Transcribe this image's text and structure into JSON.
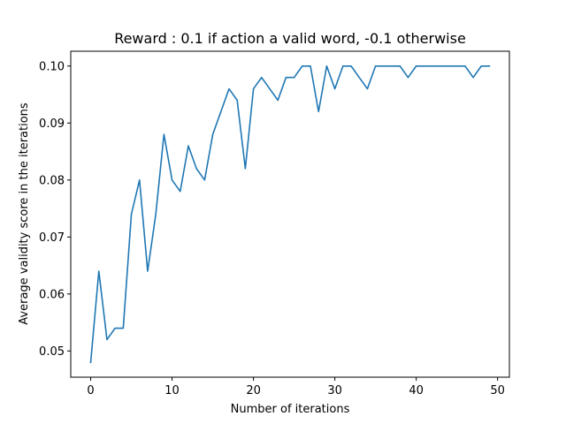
{
  "chart_data": {
    "type": "line",
    "title": "Reward : 0.1 if action a valid word, -0.1 otherwise",
    "xlabel": "Number of iterations",
    "ylabel": "Average validity score in the iterations",
    "xlim": [
      -2.45,
      51.45
    ],
    "ylim": [
      0.0454,
      0.1026
    ],
    "xticks": [
      0,
      10,
      20,
      30,
      40,
      50
    ],
    "yticks": [
      0.05,
      0.06,
      0.07,
      0.08,
      0.09,
      0.1
    ],
    "xtick_labels": [
      "0",
      "10",
      "20",
      "30",
      "40",
      "50"
    ],
    "ytick_labels": [
      "0.05",
      "0.06",
      "0.07",
      "0.08",
      "0.09",
      "0.10"
    ],
    "grid": false,
    "series": [
      {
        "color": "#1f77b4",
        "x": [
          0,
          1,
          2,
          3,
          4,
          5,
          6,
          7,
          8,
          9,
          10,
          11,
          12,
          13,
          14,
          15,
          16,
          17,
          18,
          19,
          20,
          21,
          22,
          23,
          24,
          25,
          26,
          27,
          28,
          29,
          30,
          31,
          32,
          33,
          34,
          35,
          36,
          37,
          38,
          39,
          40,
          41,
          42,
          43,
          44,
          45,
          46,
          47,
          48,
          49
        ],
        "y": [
          0.048,
          0.064,
          0.052,
          0.054,
          0.054,
          0.074,
          0.08,
          0.064,
          0.074,
          0.088,
          0.08,
          0.078,
          0.086,
          0.082,
          0.08,
          0.088,
          0.092,
          0.096,
          0.094,
          0.082,
          0.096,
          0.098,
          0.096,
          0.094,
          0.098,
          0.098,
          0.1,
          0.1,
          0.092,
          0.1,
          0.096,
          0.1,
          0.1,
          0.098,
          0.096,
          0.1,
          0.1,
          0.1,
          0.1,
          0.098,
          0.1,
          0.1,
          0.1,
          0.1,
          0.1,
          0.1,
          0.1,
          0.098,
          0.1,
          0.1
        ]
      }
    ]
  }
}
